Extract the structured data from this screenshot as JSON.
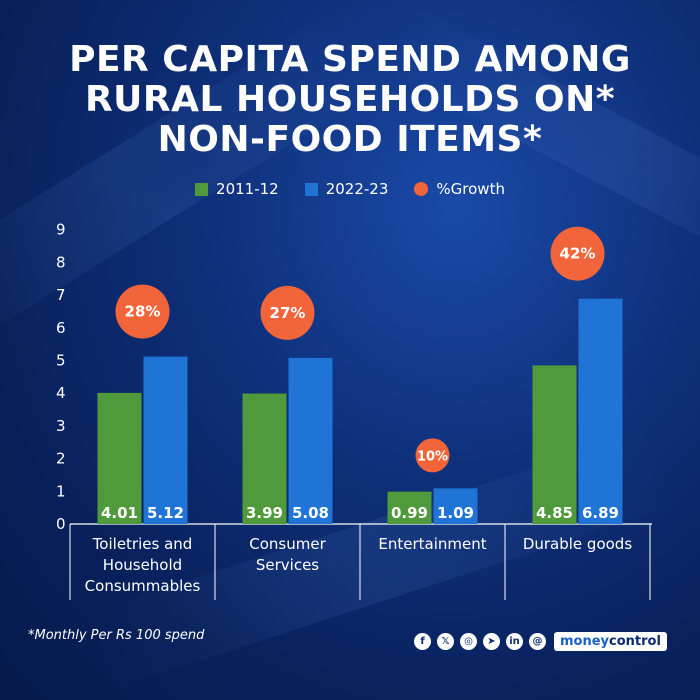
{
  "title_lines": [
    "PER CAPITA SPEND AMONG",
    "RURAL HOUSEHOLDS ON*",
    "NON-FOOD ITEMS*"
  ],
  "legend": [
    {
      "label": "2011-12",
      "color": "#4f9a3a",
      "shape": "square"
    },
    {
      "label": "2022-23",
      "color": "#1f74d6",
      "shape": "square"
    },
    {
      "label": "%Growth",
      "color": "#f2653a",
      "shape": "circle"
    }
  ],
  "chart_data": {
    "type": "bar",
    "categories": [
      [
        "Toiletries and",
        "Household",
        "Consummables"
      ],
      [
        "Consumer",
        "Services"
      ],
      [
        "Entertainment"
      ],
      [
        "Durable goods"
      ]
    ],
    "series": [
      {
        "name": "2011-12",
        "values": [
          4.01,
          3.99,
          0.99,
          4.85
        ],
        "labels": [
          "4.01",
          "3.99",
          "0.99",
          "4.85"
        ],
        "color": "#4f9a3a"
      },
      {
        "name": "2022-23",
        "values": [
          5.12,
          5.08,
          1.09,
          6.89
        ],
        "labels": [
          "5.12",
          "5.08",
          "1.09",
          "6.89"
        ],
        "color": "#1f74d6"
      }
    ],
    "growth": [
      "28%",
      "27%",
      "10%",
      "42%"
    ],
    "growth_color": "#f2653a",
    "yticks": [
      "0",
      "1",
      "2",
      "3",
      "4",
      "5",
      "6",
      "7",
      "8",
      "9"
    ],
    "ylim": [
      0,
      9
    ],
    "grid": false
  },
  "footnote": "*Monthly Per Rs 100 spend",
  "social_icons": [
    "facebook-icon",
    "x-icon",
    "instagram-icon",
    "telegram-icon",
    "linkedin-icon",
    "threads-icon"
  ],
  "social_glyphs": [
    "f",
    "𝕏",
    "◎",
    "➤",
    "in",
    "@"
  ],
  "brand": {
    "part1": "money",
    "part2": "control"
  }
}
